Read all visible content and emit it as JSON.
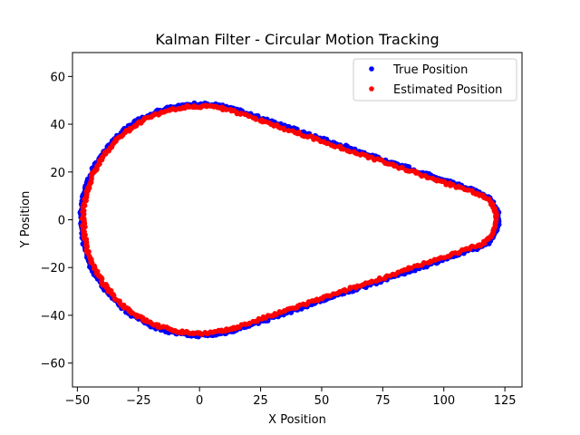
{
  "chart_data": {
    "type": "scatter",
    "title": "Kalman Filter - Circular Motion Tracking",
    "xlabel": "X Position",
    "ylabel": "Y Position",
    "xlim": [
      -52,
      132
    ],
    "ylim": [
      -70,
      70
    ],
    "xticks": [
      -50,
      -25,
      0,
      25,
      50,
      75,
      100,
      125
    ],
    "yticks": [
      -60,
      -40,
      -20,
      0,
      20,
      40,
      60
    ],
    "xtick_labels": [
      "−50",
      "−25",
      "0",
      "25",
      "50",
      "75",
      "100",
      "125"
    ],
    "ytick_labels": [
      "−60",
      "−40",
      "−20",
      "0",
      "20",
      "40",
      "60"
    ],
    "grid": false,
    "legend_position": "top-right",
    "shape": {
      "description_points": "closed path: circle of radius ~47.5 centered at origin joined by tangent lines to a rounded tip near x~120",
      "circle_center": [
        0,
        0
      ],
      "circle_radius": 47.5,
      "tangent_top": [
        [
          0,
          47.5
        ],
        [
          107,
          20
        ]
      ],
      "tip_arc_center": [
        110,
        0
      ],
      "tip_arc_radius": 11.5,
      "tangent_bottom": [
        [
          107,
          -20
        ],
        [
          0,
          -47.5
        ]
      ]
    },
    "series": [
      {
        "name": "True Position",
        "color": "#0000ff",
        "radius_offset": 1.0
      },
      {
        "name": "Estimated Position",
        "color": "#ff0000",
        "radius_offset": 0.0
      }
    ]
  }
}
